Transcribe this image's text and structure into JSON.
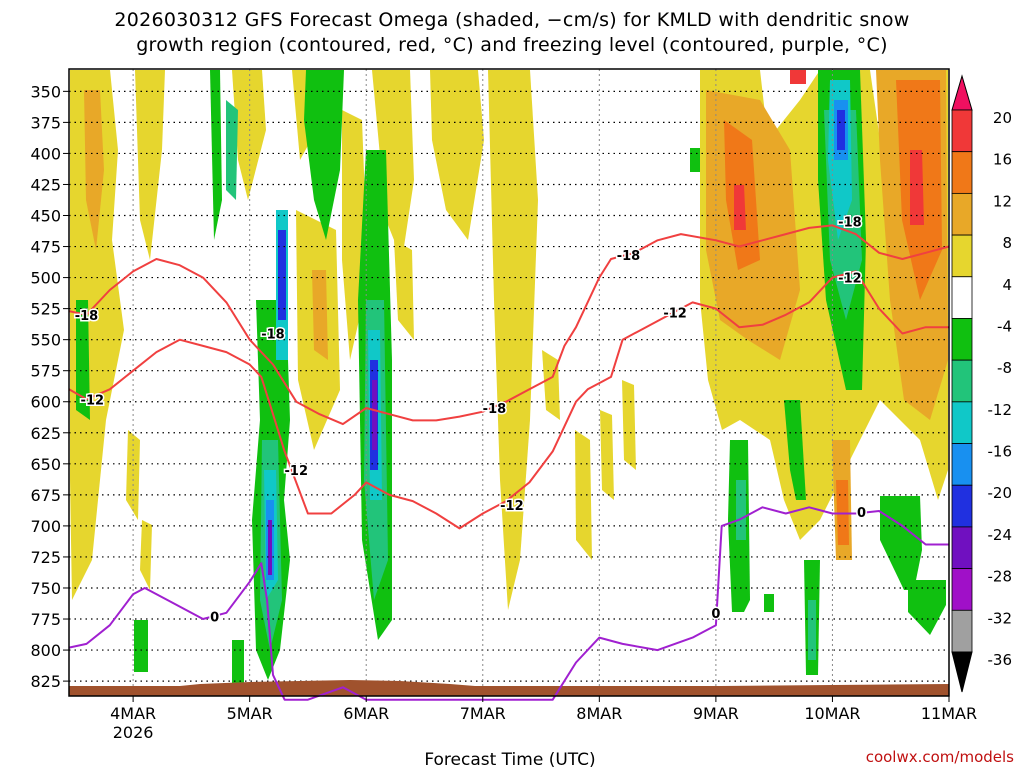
{
  "chart_data": {
    "type": "heatmap",
    "title_lines": [
      "2026030312 GFS Forecast Omega (shaded, −cm/s) for KMLD with dendritic snow",
      "growth region (contoured, red, °C) and freezing level (contoured, purple, °C)"
    ],
    "xlabel": "Forecast Time (UTC)",
    "credit": "coolwx.com/models",
    "x_range_days": [
      3.45,
      11.0
    ],
    "x_ticks": [
      {
        "label": "4MAR",
        "sub": "2026",
        "day": 4
      },
      {
        "label": "5MAR",
        "sub": "",
        "day": 5
      },
      {
        "label": "6MAR",
        "sub": "",
        "day": 6
      },
      {
        "label": "7MAR",
        "sub": "",
        "day": 7
      },
      {
        "label": "8MAR",
        "sub": "",
        "day": 8
      },
      {
        "label": "9MAR",
        "sub": "",
        "day": 9
      },
      {
        "label": "10MAR",
        "sub": "",
        "day": 10
      },
      {
        "label": "11MAR",
        "sub": "",
        "day": 11
      }
    ],
    "y_range_hpa": [
      332,
      837
    ],
    "y_ticks": [
      350,
      375,
      400,
      425,
      450,
      475,
      500,
      525,
      550,
      575,
      600,
      625,
      650,
      675,
      700,
      725,
      750,
      775,
      800,
      825
    ],
    "colorbar": {
      "labels": [
        "20",
        "16",
        "12",
        "8",
        "4",
        "-4",
        "-8",
        "-12",
        "-16",
        "-20",
        "-24",
        "-28",
        "-32",
        "-36"
      ],
      "colors": [
        "#f01060",
        "#f03838",
        "#f07818",
        "#e8a828",
        "#e6d62e",
        "#ffffff",
        "#10c010",
        "#22c47a",
        "#10c8c8",
        "#1890f0",
        "#2030e0",
        "#7010c0",
        "#a010c8",
        "#a0a0a0",
        "#000000"
      ]
    },
    "contours": [
      {
        "name": "-18",
        "color": "#f04040",
        "x": [
          3.45,
          3.6,
          3.8,
          4.0,
          4.2,
          4.4,
          4.6,
          4.8,
          5.0,
          5.2,
          5.4,
          5.6,
          5.8,
          6.0,
          6.2,
          6.4,
          6.6,
          6.8,
          7.0,
          7.2,
          7.4,
          7.6,
          7.7,
          7.8,
          8.0,
          8.1,
          8.3,
          8.5,
          8.7,
          9.0,
          9.2,
          9.4,
          9.6,
          9.8,
          10.0,
          10.2,
          10.4,
          10.6,
          10.8,
          11.0
        ],
        "y": [
          527,
          530,
          510,
          495,
          485,
          490,
          500,
          520,
          550,
          570,
          600,
          610,
          618,
          605,
          610,
          615,
          615,
          612,
          608,
          600,
          590,
          580,
          555,
          540,
          500,
          485,
          480,
          470,
          465,
          470,
          475,
          470,
          465,
          460,
          458,
          465,
          480,
          485,
          480,
          475
        ],
        "labels": [
          {
            "x": 3.6,
            "y": 530
          },
          {
            "x": 5.2,
            "y": 545
          },
          {
            "x": 7.1,
            "y": 605
          },
          {
            "x": 8.25,
            "y": 482
          },
          {
            "x": 10.15,
            "y": 455
          }
        ]
      },
      {
        "name": "-12",
        "color": "#f04040",
        "x": [
          3.45,
          3.6,
          3.8,
          4.0,
          4.2,
          4.4,
          4.6,
          4.8,
          5.0,
          5.1,
          5.2,
          5.3,
          5.5,
          5.7,
          5.9,
          6.0,
          6.2,
          6.4,
          6.6,
          6.8,
          7.0,
          7.2,
          7.4,
          7.6,
          7.8,
          7.9,
          8.1,
          8.2,
          8.4,
          8.6,
          8.8,
          9.0,
          9.2,
          9.4,
          9.6,
          9.8,
          10.0,
          10.2,
          10.4,
          10.6,
          10.8,
          11.0
        ],
        "y": [
          590,
          598,
          590,
          575,
          560,
          550,
          555,
          560,
          570,
          580,
          610,
          640,
          690,
          690,
          675,
          665,
          675,
          680,
          690,
          702,
          690,
          680,
          665,
          640,
          600,
          590,
          580,
          550,
          540,
          530,
          520,
          525,
          540,
          538,
          530,
          520,
          500,
          495,
          525,
          545,
          540,
          540
        ],
        "labels": [
          {
            "x": 3.65,
            "y": 598
          },
          {
            "x": 5.4,
            "y": 655
          },
          {
            "x": 7.25,
            "y": 683
          },
          {
            "x": 8.65,
            "y": 528
          },
          {
            "x": 10.15,
            "y": 500
          }
        ]
      },
      {
        "name": "0",
        "color": "#a020d0",
        "x": [
          3.45,
          3.6,
          3.8,
          4.0,
          4.1,
          4.3,
          4.6,
          4.8,
          5.0,
          5.1,
          5.15,
          5.2,
          5.3,
          5.5,
          5.8,
          6.0,
          6.2,
          6.5,
          7.0,
          7.6,
          7.8,
          8.0,
          8.2,
          8.5,
          8.8,
          9.0,
          9.05,
          9.2,
          9.4,
          9.6,
          9.8,
          10.0,
          10.2,
          10.4,
          10.6,
          10.8,
          11.0
        ],
        "y": [
          798,
          795,
          780,
          755,
          750,
          760,
          775,
          770,
          745,
          730,
          760,
          820,
          840,
          840,
          830,
          840,
          840,
          840,
          840,
          840,
          810,
          790,
          795,
          800,
          790,
          780,
          700,
          695,
          685,
          690,
          685,
          690,
          690,
          688,
          700,
          715,
          715
        ],
        "labels": [
          {
            "x": 4.7,
            "y": 773
          },
          {
            "x": 9.0,
            "y": 770
          },
          {
            "x": 10.25,
            "y": 689
          }
        ]
      }
    ]
  }
}
